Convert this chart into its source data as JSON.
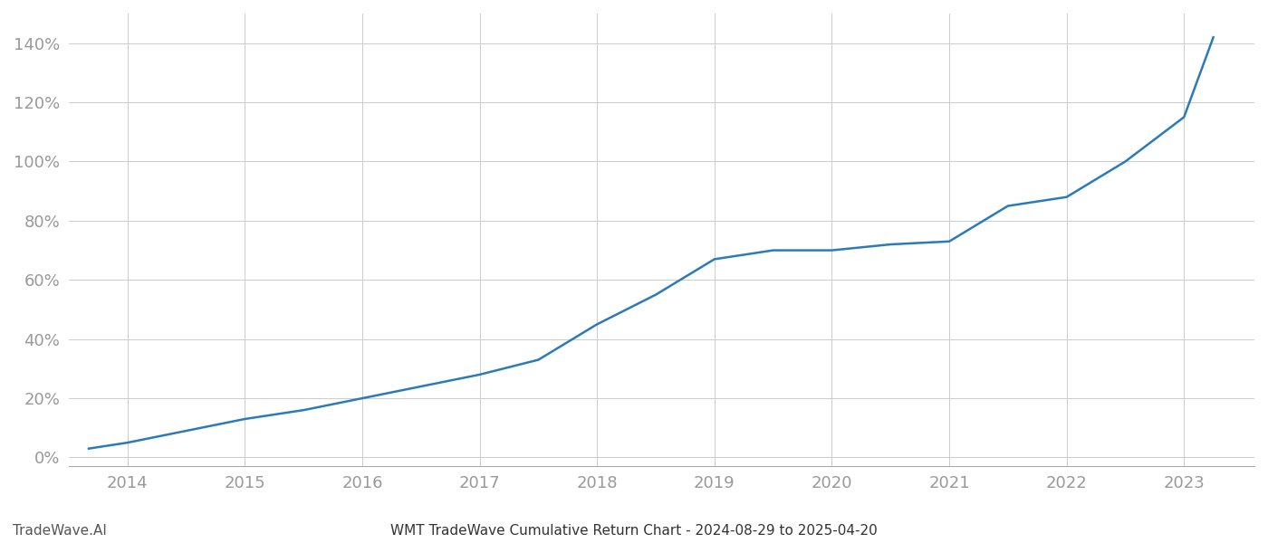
{
  "title": "WMT TradeWave Cumulative Return Chart - 2024-08-29 to 2025-04-20",
  "watermark": "TradeWave.AI",
  "line_color": "#2b7bba",
  "background_color": "#ffffff",
  "grid_color": "#cccccc",
  "x_years": [
    2014,
    2015,
    2016,
    2017,
    2018,
    2019,
    2020,
    2021,
    2022,
    2023
  ],
  "x_values": [
    2013.67,
    2014.0,
    2014.5,
    2015.0,
    2015.5,
    2016.0,
    2016.5,
    2017.0,
    2017.5,
    2018.0,
    2018.5,
    2019.0,
    2019.5,
    2020.0,
    2020.5,
    2021.0,
    2021.5,
    2022.0,
    2022.5,
    2023.0,
    2023.25
  ],
  "y_values": [
    0.03,
    0.05,
    0.09,
    0.13,
    0.16,
    0.2,
    0.24,
    0.28,
    0.33,
    0.45,
    0.55,
    0.67,
    0.7,
    0.7,
    0.72,
    0.73,
    0.85,
    0.88,
    1.0,
    1.15,
    1.42
  ],
  "xlim": [
    2013.5,
    2023.6
  ],
  "ylim": [
    -0.03,
    1.5
  ],
  "yticks": [
    0.0,
    0.2,
    0.4,
    0.6,
    0.8,
    1.0,
    1.2,
    1.4
  ],
  "title_fontsize": 11,
  "tick_fontsize": 13,
  "watermark_fontsize": 11,
  "line_width": 1.8
}
